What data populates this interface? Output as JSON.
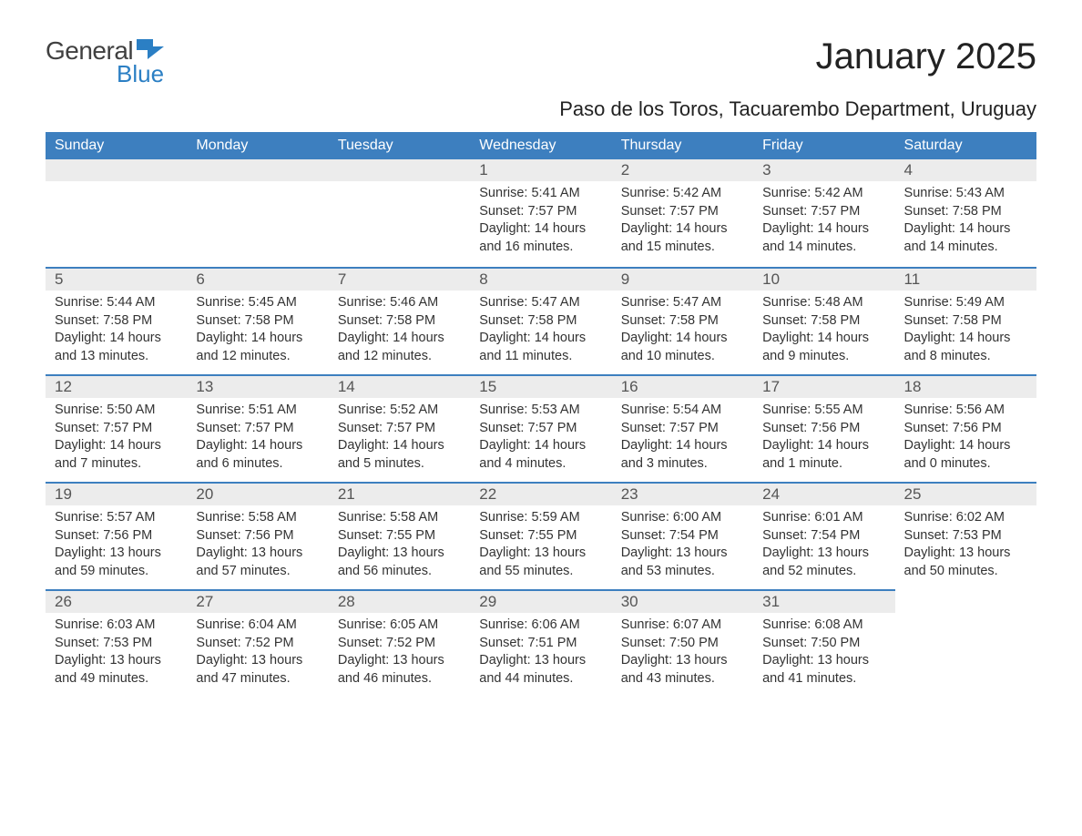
{
  "logo": {
    "text_general": "General",
    "text_blue": "Blue",
    "flag_color": "#2b7fc4"
  },
  "title": "January 2025",
  "location": "Paso de los Toros, Tacuarembo Department, Uruguay",
  "colors": {
    "header_bg": "#3d7fbf",
    "header_text": "#ffffff",
    "daynum_bg": "#ececec",
    "border_top": "#3d7fbf",
    "body_text": "#333333",
    "title_text": "#222222"
  },
  "typography": {
    "title_fontsize": 40,
    "location_fontsize": 22,
    "dayheader_fontsize": 16,
    "daynum_fontsize": 17,
    "content_fontsize": 14.5
  },
  "day_headers": [
    "Sunday",
    "Monday",
    "Tuesday",
    "Wednesday",
    "Thursday",
    "Friday",
    "Saturday"
  ],
  "weeks": [
    [
      null,
      null,
      null,
      {
        "num": "1",
        "sunrise": "Sunrise: 5:41 AM",
        "sunset": "Sunset: 7:57 PM",
        "daylight": "Daylight: 14 hours and 16 minutes."
      },
      {
        "num": "2",
        "sunrise": "Sunrise: 5:42 AM",
        "sunset": "Sunset: 7:57 PM",
        "daylight": "Daylight: 14 hours and 15 minutes."
      },
      {
        "num": "3",
        "sunrise": "Sunrise: 5:42 AM",
        "sunset": "Sunset: 7:57 PM",
        "daylight": "Daylight: 14 hours and 14 minutes."
      },
      {
        "num": "4",
        "sunrise": "Sunrise: 5:43 AM",
        "sunset": "Sunset: 7:58 PM",
        "daylight": "Daylight: 14 hours and 14 minutes."
      }
    ],
    [
      {
        "num": "5",
        "sunrise": "Sunrise: 5:44 AM",
        "sunset": "Sunset: 7:58 PM",
        "daylight": "Daylight: 14 hours and 13 minutes."
      },
      {
        "num": "6",
        "sunrise": "Sunrise: 5:45 AM",
        "sunset": "Sunset: 7:58 PM",
        "daylight": "Daylight: 14 hours and 12 minutes."
      },
      {
        "num": "7",
        "sunrise": "Sunrise: 5:46 AM",
        "sunset": "Sunset: 7:58 PM",
        "daylight": "Daylight: 14 hours and 12 minutes."
      },
      {
        "num": "8",
        "sunrise": "Sunrise: 5:47 AM",
        "sunset": "Sunset: 7:58 PM",
        "daylight": "Daylight: 14 hours and 11 minutes."
      },
      {
        "num": "9",
        "sunrise": "Sunrise: 5:47 AM",
        "sunset": "Sunset: 7:58 PM",
        "daylight": "Daylight: 14 hours and 10 minutes."
      },
      {
        "num": "10",
        "sunrise": "Sunrise: 5:48 AM",
        "sunset": "Sunset: 7:58 PM",
        "daylight": "Daylight: 14 hours and 9 minutes."
      },
      {
        "num": "11",
        "sunrise": "Sunrise: 5:49 AM",
        "sunset": "Sunset: 7:58 PM",
        "daylight": "Daylight: 14 hours and 8 minutes."
      }
    ],
    [
      {
        "num": "12",
        "sunrise": "Sunrise: 5:50 AM",
        "sunset": "Sunset: 7:57 PM",
        "daylight": "Daylight: 14 hours and 7 minutes."
      },
      {
        "num": "13",
        "sunrise": "Sunrise: 5:51 AM",
        "sunset": "Sunset: 7:57 PM",
        "daylight": "Daylight: 14 hours and 6 minutes."
      },
      {
        "num": "14",
        "sunrise": "Sunrise: 5:52 AM",
        "sunset": "Sunset: 7:57 PM",
        "daylight": "Daylight: 14 hours and 5 minutes."
      },
      {
        "num": "15",
        "sunrise": "Sunrise: 5:53 AM",
        "sunset": "Sunset: 7:57 PM",
        "daylight": "Daylight: 14 hours and 4 minutes."
      },
      {
        "num": "16",
        "sunrise": "Sunrise: 5:54 AM",
        "sunset": "Sunset: 7:57 PM",
        "daylight": "Daylight: 14 hours and 3 minutes."
      },
      {
        "num": "17",
        "sunrise": "Sunrise: 5:55 AM",
        "sunset": "Sunset: 7:56 PM",
        "daylight": "Daylight: 14 hours and 1 minute."
      },
      {
        "num": "18",
        "sunrise": "Sunrise: 5:56 AM",
        "sunset": "Sunset: 7:56 PM",
        "daylight": "Daylight: 14 hours and 0 minutes."
      }
    ],
    [
      {
        "num": "19",
        "sunrise": "Sunrise: 5:57 AM",
        "sunset": "Sunset: 7:56 PM",
        "daylight": "Daylight: 13 hours and 59 minutes."
      },
      {
        "num": "20",
        "sunrise": "Sunrise: 5:58 AM",
        "sunset": "Sunset: 7:56 PM",
        "daylight": "Daylight: 13 hours and 57 minutes."
      },
      {
        "num": "21",
        "sunrise": "Sunrise: 5:58 AM",
        "sunset": "Sunset: 7:55 PM",
        "daylight": "Daylight: 13 hours and 56 minutes."
      },
      {
        "num": "22",
        "sunrise": "Sunrise: 5:59 AM",
        "sunset": "Sunset: 7:55 PM",
        "daylight": "Daylight: 13 hours and 55 minutes."
      },
      {
        "num": "23",
        "sunrise": "Sunrise: 6:00 AM",
        "sunset": "Sunset: 7:54 PM",
        "daylight": "Daylight: 13 hours and 53 minutes."
      },
      {
        "num": "24",
        "sunrise": "Sunrise: 6:01 AM",
        "sunset": "Sunset: 7:54 PM",
        "daylight": "Daylight: 13 hours and 52 minutes."
      },
      {
        "num": "25",
        "sunrise": "Sunrise: 6:02 AM",
        "sunset": "Sunset: 7:53 PM",
        "daylight": "Daylight: 13 hours and 50 minutes."
      }
    ],
    [
      {
        "num": "26",
        "sunrise": "Sunrise: 6:03 AM",
        "sunset": "Sunset: 7:53 PM",
        "daylight": "Daylight: 13 hours and 49 minutes."
      },
      {
        "num": "27",
        "sunrise": "Sunrise: 6:04 AM",
        "sunset": "Sunset: 7:52 PM",
        "daylight": "Daylight: 13 hours and 47 minutes."
      },
      {
        "num": "28",
        "sunrise": "Sunrise: 6:05 AM",
        "sunset": "Sunset: 7:52 PM",
        "daylight": "Daylight: 13 hours and 46 minutes."
      },
      {
        "num": "29",
        "sunrise": "Sunrise: 6:06 AM",
        "sunset": "Sunset: 7:51 PM",
        "daylight": "Daylight: 13 hours and 44 minutes."
      },
      {
        "num": "30",
        "sunrise": "Sunrise: 6:07 AM",
        "sunset": "Sunset: 7:50 PM",
        "daylight": "Daylight: 13 hours and 43 minutes."
      },
      {
        "num": "31",
        "sunrise": "Sunrise: 6:08 AM",
        "sunset": "Sunset: 7:50 PM",
        "daylight": "Daylight: 13 hours and 41 minutes."
      },
      null
    ]
  ]
}
